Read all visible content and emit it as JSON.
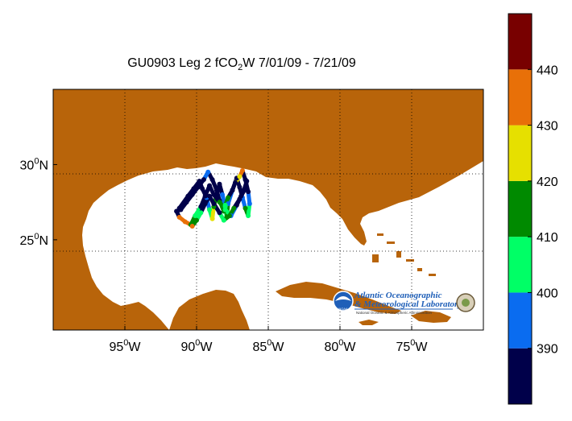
{
  "title": {
    "main": "GU0903 Leg 2 fCO",
    "sub": "2",
    "rest": "W 7/01/09 - 7/21/09"
  },
  "axes": {
    "lon_ticks": [
      {
        "deg": "95",
        "dir": "W"
      },
      {
        "deg": "90",
        "dir": "W"
      },
      {
        "deg": "85",
        "dir": "W"
      },
      {
        "deg": "80",
        "dir": "W"
      },
      {
        "deg": "75",
        "dir": "W"
      }
    ],
    "lat_ticks": [
      {
        "deg": "30",
        "dir": "N"
      },
      {
        "deg": "25",
        "dir": "N"
      }
    ],
    "lon_range": [
      -100,
      -70
    ],
    "lat_range": [
      19,
      35
    ],
    "grid": "dotted"
  },
  "colorbar": {
    "labels": [
      "390",
      "400",
      "410",
      "420",
      "430",
      "440"
    ],
    "range": [
      380,
      450
    ],
    "bands": [
      {
        "from": 380,
        "to": 390,
        "color": "#00004a"
      },
      {
        "from": 390,
        "to": 400,
        "color": "#0a6cf0"
      },
      {
        "from": 400,
        "to": 410,
        "color": "#00ff66"
      },
      {
        "from": 410,
        "to": 420,
        "color": "#008a00"
      },
      {
        "from": 420,
        "to": 430,
        "color": "#e6e000"
      },
      {
        "from": 430,
        "to": 440,
        "color": "#e87008"
      },
      {
        "from": 440,
        "to": 450,
        "color": "#780000"
      }
    ]
  },
  "colors": {
    "land": "#b8640a",
    "ocean": "#ffffff"
  },
  "logo": {
    "line1": "Atlantic Oceanographic",
    "line2": "& Meteorological Laboratory",
    "line3": "National Oceanic & Atmospheric Administration",
    "seal_text": "NOAA"
  },
  "chart_data": {
    "type": "scatter",
    "x_label": "",
    "y_label": "",
    "track_lon": [
      -91.2,
      -90.6,
      -90.2,
      -89.8,
      -89.6,
      -89.3,
      -89.1,
      -88.9,
      -88.8,
      -88.6,
      -88.4,
      -88.2,
      -88.0,
      -87.9,
      -87.8,
      -87.5,
      -87.2,
      -87.0,
      -86.8,
      -86.6,
      -86.4,
      -86.3,
      -86.4,
      -86.6,
      -86.8,
      -87.0,
      -87.3,
      -87.5,
      -87.8,
      -88.0,
      -88.1,
      -88.4,
      -88.6,
      -88.9,
      -89.2,
      -89.5,
      -89.9,
      -90.3,
      -90.7,
      -91.1,
      -91.4,
      -91.2,
      -90.8,
      -90.4,
      -90.1,
      -89.7,
      -89.4,
      -89.1,
      -88.8,
      -88.4,
      -88.0,
      -87.6,
      -87.2,
      -86.9,
      -86.6,
      -86.5,
      -86.7,
      -87.0,
      -87.4,
      -87.7,
      -88.1,
      -88.4,
      -88.8,
      -89.1,
      -89.4,
      -89.7,
      -90.0,
      -90.3
    ],
    "track_lat": [
      27.1,
      27.9,
      28.4,
      28.9,
      28.4,
      27.8,
      27.0,
      26.4,
      27.2,
      28.0,
      28.7,
      28.0,
      27.2,
      26.5,
      27.4,
      28.3,
      29.1,
      28.5,
      27.8,
      27.1,
      26.6,
      27.4,
      28.2,
      29.0,
      29.6,
      29.2,
      28.8,
      28.3,
      27.8,
      27.3,
      26.9,
      27.6,
      28.3,
      29.0,
      29.5,
      29.0,
      28.5,
      28.0,
      27.5,
      27.0,
      26.9,
      26.5,
      26.2,
      26.0,
      26.6,
      27.2,
      27.9,
      28.6,
      28.0,
      27.5,
      27.0,
      26.6,
      27.3,
      27.9,
      28.4,
      28.9,
      28.3,
      27.7,
      27.1,
      26.6,
      26.3,
      26.8,
      27.4,
      27.9,
      27.4,
      26.8,
      26.3,
      25.9
    ],
    "track_fco2": [
      385,
      385,
      386,
      384,
      388,
      395,
      405,
      425,
      412,
      386,
      385,
      392,
      408,
      415,
      398,
      386,
      384,
      385,
      390,
      412,
      408,
      394,
      386,
      385,
      430,
      420,
      386,
      385,
      412,
      402,
      415,
      388,
      386,
      385,
      392,
      385,
      384,
      386,
      385,
      384,
      385,
      438,
      432,
      412,
      408,
      385,
      386,
      384,
      385,
      411,
      406,
      398,
      388,
      385,
      386,
      384,
      385,
      386,
      413,
      410,
      405,
      386,
      385,
      384,
      386,
      404,
      410,
      436
    ]
  }
}
